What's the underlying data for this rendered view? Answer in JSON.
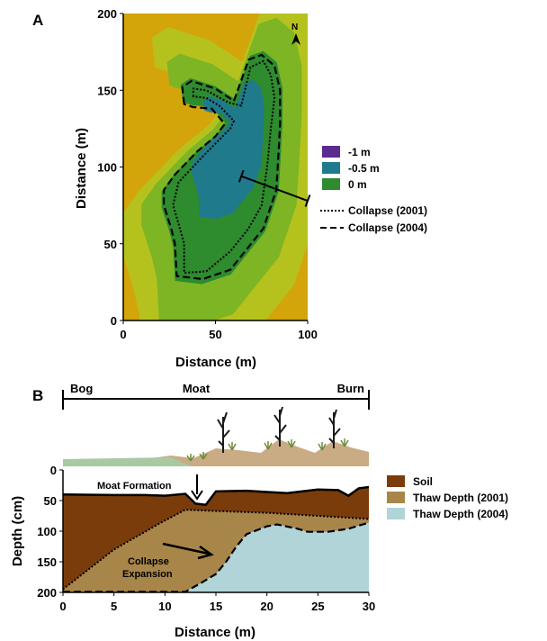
{
  "panel_a": {
    "label": "A",
    "north_label": "N",
    "legend": {
      "contours": [
        {
          "label": "-1 m",
          "color": "#5b2c90"
        },
        {
          "label": "-0.5 m",
          "color": "#1f7a8c"
        },
        {
          "label": "0 m",
          "color": "#2e8b2e"
        }
      ],
      "lines": [
        {
          "label": "Collapse (2001)",
          "style": "dotted"
        },
        {
          "label": "Collapse (2004)",
          "style": "dashed"
        }
      ]
    }
  },
  "panel_b": {
    "label": "B",
    "transect_labels": [
      "Bog",
      "Moat",
      "Burn"
    ],
    "annotations": {
      "moat_formation": "Moat Formation",
      "collapse_line1": "Collapse",
      "collapse_line2": "Expansion"
    },
    "legend": [
      {
        "label": "Soil",
        "color": "#7a3c0a"
      },
      {
        "label": "Thaw Depth (2001)",
        "color": "#a8864a"
      },
      {
        "label": "Thaw Depth (2004)",
        "color": "#b0d4d8"
      }
    ]
  },
  "chart_data": [
    {
      "type": "heatmap",
      "title": "",
      "xlabel": "Distance (m)",
      "ylabel": "Distance (m)",
      "xlim": [
        0,
        100
      ],
      "ylim": [
        0,
        200
      ],
      "xticks": [
        0,
        50,
        100
      ],
      "yticks": [
        0,
        50,
        100,
        150,
        200
      ],
      "colors": {
        "background": "#d4a50a",
        "ring1": "#b5c21e",
        "ring2": "#7db524",
        "zero": "#2e8b2e",
        "minus_half": "#1f7a8c",
        "minus_one": "#5b2c90"
      },
      "collapse_2004": [
        [
          33,
          141
        ],
        [
          32,
          152
        ],
        [
          37,
          156
        ],
        [
          50,
          151
        ],
        [
          60,
          143
        ],
        [
          68,
          170
        ],
        [
          75,
          173
        ],
        [
          82,
          166
        ],
        [
          85,
          150
        ],
        [
          85,
          128
        ],
        [
          84,
          105
        ],
        [
          83,
          85
        ],
        [
          76,
          60
        ],
        [
          66,
          45
        ],
        [
          58,
          33
        ],
        [
          43,
          27
        ],
        [
          29,
          29
        ],
        [
          28,
          50
        ],
        [
          26,
          60
        ],
        [
          22,
          75
        ],
        [
          22,
          85
        ],
        [
          28,
          95
        ],
        [
          40,
          110
        ],
        [
          50,
          120
        ],
        [
          55,
          128
        ],
        [
          48,
          138
        ],
        [
          38,
          139
        ],
        [
          33,
          141
        ]
      ],
      "collapse_2001": [
        [
          38,
          146
        ],
        [
          38,
          151
        ],
        [
          45,
          150
        ],
        [
          57,
          142
        ],
        [
          64,
          140
        ],
        [
          69,
          165
        ],
        [
          76,
          169
        ],
        [
          80,
          160
        ],
        [
          82,
          145
        ],
        [
          80,
          125
        ],
        [
          78,
          100
        ],
        [
          75,
          75
        ],
        [
          68,
          60
        ],
        [
          58,
          45
        ],
        [
          45,
          32
        ],
        [
          33,
          31
        ],
        [
          33,
          50
        ],
        [
          30,
          63
        ],
        [
          27,
          75
        ],
        [
          30,
          90
        ],
        [
          44,
          108
        ],
        [
          58,
          125
        ],
        [
          60,
          130
        ],
        [
          52,
          140
        ],
        [
          45,
          145
        ],
        [
          38,
          146
        ]
      ],
      "transect": {
        "x": [
          64,
          100
        ],
        "y": [
          94,
          78
        ]
      }
    },
    {
      "type": "area",
      "title": "",
      "xlabel": "Distance (m)",
      "ylabel": "Depth (cm)",
      "xlim": [
        0,
        30
      ],
      "ylim": [
        200,
        0
      ],
      "xticks": [
        0,
        5,
        10,
        15,
        20,
        25,
        30
      ],
      "yticks": [
        0,
        50,
        100,
        150,
        200
      ],
      "series": [
        {
          "name": "Soil",
          "x": [
            0,
            5,
            8,
            10,
            12,
            13,
            14,
            15,
            18,
            20,
            22,
            25,
            27,
            28,
            29,
            30
          ],
          "values": [
            40,
            41,
            41,
            42,
            39,
            55,
            57,
            35,
            34,
            36,
            38,
            32,
            33,
            42,
            30,
            28
          ]
        },
        {
          "name": "Thaw Depth (2001)",
          "x": [
            0,
            5,
            9.5,
            12,
            15,
            20,
            25,
            30
          ],
          "values": [
            195,
            130,
            87,
            65,
            67,
            70,
            75,
            80
          ]
        },
        {
          "name": "Thaw Depth (2004)",
          "x": [
            0,
            5,
            10,
            12,
            13.5,
            15,
            16,
            17,
            18,
            20,
            21,
            23,
            24,
            26,
            28,
            30
          ],
          "values": [
            199,
            199,
            199,
            199,
            185,
            170,
            150,
            125,
            105,
            92,
            89,
            96,
            101,
            101,
            96,
            86
          ]
        }
      ]
    }
  ]
}
